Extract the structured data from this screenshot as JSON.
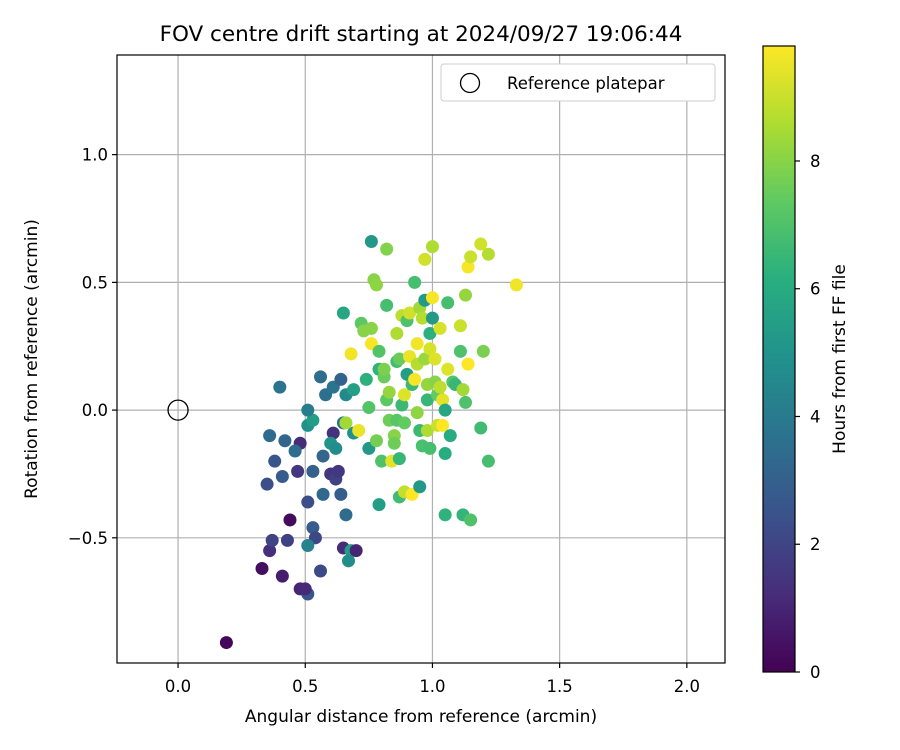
{
  "chart_data": {
    "type": "scatter",
    "title": "FOV centre drift starting at 2024/09/27 19:06:44",
    "xlabel": "Angular distance from reference (arcmin)",
    "ylabel": "Rotation from reference (arcmin)",
    "xlim": [
      -0.24,
      2.15
    ],
    "ylim": [
      -0.99,
      1.39
    ],
    "xticks": [
      0.0,
      0.5,
      1.0,
      1.5,
      2.0
    ],
    "xtick_labels": [
      "0.0",
      "0.5",
      "1.0",
      "1.5",
      "2.0"
    ],
    "yticks": [
      -0.5,
      0.0,
      0.5,
      1.0
    ],
    "ytick_labels": [
      "−0.5",
      "0.0",
      "0.5",
      "1.0"
    ],
    "grid": true,
    "legend": {
      "entries": [
        {
          "label": "Reference platepar",
          "marker": "open-circle"
        }
      ],
      "position": "upper-right"
    },
    "reference_point": {
      "x": 0.0,
      "y": 0.0
    },
    "colorbar": {
      "label": "Hours from first FF file",
      "colormap": "viridis",
      "range": [
        0,
        9.8
      ],
      "ticks": [
        0,
        2,
        4,
        6,
        8
      ],
      "tick_labels": [
        "0",
        "2",
        "4",
        "6",
        "8"
      ]
    },
    "colors": {
      "grid": "#b0b0b0",
      "axis": "#000000"
    },
    "points": [
      {
        "x": 0.19,
        "y": -0.91,
        "h": 0.2
      },
      {
        "x": 0.33,
        "y": -0.62,
        "h": 0.4
      },
      {
        "x": 0.36,
        "y": -0.55,
        "h": 1.3
      },
      {
        "x": 0.41,
        "y": -0.65,
        "h": 0.8
      },
      {
        "x": 0.44,
        "y": -0.43,
        "h": 0.3
      },
      {
        "x": 0.48,
        "y": -0.7,
        "h": 1.0
      },
      {
        "x": 0.48,
        "y": -0.13,
        "h": 1.2
      },
      {
        "x": 0.47,
        "y": -0.24,
        "h": 1.6
      },
      {
        "x": 0.43,
        "y": -0.51,
        "h": 1.9
      },
      {
        "x": 0.37,
        "y": -0.51,
        "h": 2.0
      },
      {
        "x": 0.35,
        "y": -0.29,
        "h": 2.4
      },
      {
        "x": 0.38,
        "y": -0.2,
        "h": 2.6
      },
      {
        "x": 0.41,
        "y": -0.26,
        "h": 2.8
      },
      {
        "x": 0.36,
        "y": -0.1,
        "h": 3.4
      },
      {
        "x": 0.42,
        "y": -0.12,
        "h": 3.2
      },
      {
        "x": 0.46,
        "y": -0.16,
        "h": 3.5
      },
      {
        "x": 0.4,
        "y": 0.09,
        "h": 3.7
      },
      {
        "x": 0.51,
        "y": -0.06,
        "h": 4.9
      },
      {
        "x": 0.53,
        "y": -0.04,
        "h": 5.4
      },
      {
        "x": 0.51,
        "y": 0.0,
        "h": 4.1
      },
      {
        "x": 0.57,
        "y": -0.18,
        "h": 3.2
      },
      {
        "x": 0.53,
        "y": -0.24,
        "h": 3.0
      },
      {
        "x": 0.51,
        "y": -0.36,
        "h": 2.3
      },
      {
        "x": 0.57,
        "y": -0.33,
        "h": 3.3
      },
      {
        "x": 0.53,
        "y": -0.46,
        "h": 2.8
      },
      {
        "x": 0.54,
        "y": -0.5,
        "h": 2.1
      },
      {
        "x": 0.51,
        "y": -0.53,
        "h": 4.3
      },
      {
        "x": 0.51,
        "y": -0.72,
        "h": 2.6
      },
      {
        "x": 0.5,
        "y": -0.7,
        "h": 1.1
      },
      {
        "x": 0.56,
        "y": -0.63,
        "h": 2.2
      },
      {
        "x": 0.6,
        "y": -0.25,
        "h": 1.5
      },
      {
        "x": 0.62,
        "y": -0.27,
        "h": 1.9
      },
      {
        "x": 0.63,
        "y": -0.24,
        "h": 1.6
      },
      {
        "x": 0.61,
        "y": -0.09,
        "h": 1.4
      },
      {
        "x": 0.6,
        "y": -0.13,
        "h": 5.0
      },
      {
        "x": 0.62,
        "y": -0.15,
        "h": 4.7
      },
      {
        "x": 0.64,
        "y": -0.33,
        "h": 2.9
      },
      {
        "x": 0.66,
        "y": -0.41,
        "h": 3.4
      },
      {
        "x": 0.65,
        "y": -0.54,
        "h": 1.2
      },
      {
        "x": 0.68,
        "y": -0.55,
        "h": 5.4
      },
      {
        "x": 0.7,
        "y": -0.55,
        "h": 1.0
      },
      {
        "x": 0.67,
        "y": -0.59,
        "h": 4.8
      },
      {
        "x": 0.56,
        "y": 0.13,
        "h": 3.5
      },
      {
        "x": 0.58,
        "y": 0.06,
        "h": 3.6
      },
      {
        "x": 0.61,
        "y": 0.09,
        "h": 3.7
      },
      {
        "x": 0.64,
        "y": 0.12,
        "h": 3.1
      },
      {
        "x": 0.65,
        "y": -0.05,
        "h": 3.8
      },
      {
        "x": 0.66,
        "y": 0.06,
        "h": 4.6
      },
      {
        "x": 0.69,
        "y": -0.09,
        "h": 4.9
      },
      {
        "x": 0.69,
        "y": 0.08,
        "h": 5.5
      },
      {
        "x": 0.65,
        "y": 0.38,
        "h": 5.8
      },
      {
        "x": 0.66,
        "y": -0.05,
        "h": 8.4
      },
      {
        "x": 0.68,
        "y": 0.22,
        "h": 9.6
      },
      {
        "x": 0.71,
        "y": -0.08,
        "h": 9.5
      },
      {
        "x": 0.72,
        "y": 0.34,
        "h": 7.3
      },
      {
        "x": 0.73,
        "y": 0.31,
        "h": 8.0
      },
      {
        "x": 0.74,
        "y": 0.12,
        "h": 6.2
      },
      {
        "x": 0.75,
        "y": 0.01,
        "h": 7.1
      },
      {
        "x": 0.75,
        "y": -0.15,
        "h": 5.2
      },
      {
        "x": 0.76,
        "y": 0.66,
        "h": 5.2
      },
      {
        "x": 0.76,
        "y": 0.32,
        "h": 8.0
      },
      {
        "x": 0.76,
        "y": 0.26,
        "h": 9.7
      },
      {
        "x": 0.77,
        "y": 0.51,
        "h": 8.0
      },
      {
        "x": 0.78,
        "y": 0.49,
        "h": 8.1
      },
      {
        "x": 0.78,
        "y": -0.12,
        "h": 7.7
      },
      {
        "x": 0.79,
        "y": -0.37,
        "h": 5.4
      },
      {
        "x": 0.79,
        "y": 0.16,
        "h": 6.3
      },
      {
        "x": 0.79,
        "y": 0.23,
        "h": 7.1
      },
      {
        "x": 0.8,
        "y": -0.2,
        "h": 7.0
      },
      {
        "x": 0.81,
        "y": 0.13,
        "h": 7.5
      },
      {
        "x": 0.81,
        "y": 0.16,
        "h": 7.8
      },
      {
        "x": 0.82,
        "y": 0.63,
        "h": 7.9
      },
      {
        "x": 0.82,
        "y": 0.41,
        "h": 6.8
      },
      {
        "x": 0.82,
        "y": 0.04,
        "h": 7.3
      },
      {
        "x": 0.83,
        "y": -0.04,
        "h": 7.6
      },
      {
        "x": 0.83,
        "y": 0.07,
        "h": 8.2
      },
      {
        "x": 0.84,
        "y": -0.2,
        "h": 9.4
      },
      {
        "x": 0.85,
        "y": -0.1,
        "h": 8.0
      },
      {
        "x": 0.85,
        "y": -0.13,
        "h": 7.6
      },
      {
        "x": 0.86,
        "y": 0.19,
        "h": 6.7
      },
      {
        "x": 0.86,
        "y": -0.04,
        "h": 7.2
      },
      {
        "x": 0.86,
        "y": 0.3,
        "h": 8.6
      },
      {
        "x": 0.87,
        "y": -0.19,
        "h": 6.5
      },
      {
        "x": 0.87,
        "y": -0.34,
        "h": 6.7
      },
      {
        "x": 0.87,
        "y": 0.2,
        "h": 7.5
      },
      {
        "x": 0.88,
        "y": 0.37,
        "h": 8.8
      },
      {
        "x": 0.88,
        "y": 0.02,
        "h": 6.6
      },
      {
        "x": 0.89,
        "y": -0.32,
        "h": 8.9
      },
      {
        "x": 0.89,
        "y": 0.06,
        "h": 9.3
      },
      {
        "x": 0.89,
        "y": -0.05,
        "h": 7.4
      },
      {
        "x": 0.9,
        "y": 0.35,
        "h": 7.0
      },
      {
        "x": 0.9,
        "y": 0.14,
        "h": 5.4
      },
      {
        "x": 0.91,
        "y": 0.21,
        "h": 9.5
      },
      {
        "x": 0.91,
        "y": 0.38,
        "h": 9.1
      },
      {
        "x": 0.92,
        "y": -0.33,
        "h": 9.8
      },
      {
        "x": 0.92,
        "y": 0.1,
        "h": 6.6
      },
      {
        "x": 0.93,
        "y": 0.5,
        "h": 6.8
      },
      {
        "x": 0.93,
        "y": 0.12,
        "h": 9.7
      },
      {
        "x": 0.94,
        "y": -0.01,
        "h": 8.1
      },
      {
        "x": 0.94,
        "y": 0.18,
        "h": 8.7
      },
      {
        "x": 0.94,
        "y": 0.26,
        "h": 9.6
      },
      {
        "x": 0.95,
        "y": -0.3,
        "h": 5.2
      },
      {
        "x": 0.95,
        "y": 0.4,
        "h": 8.4
      },
      {
        "x": 0.95,
        "y": -0.08,
        "h": 6.6
      },
      {
        "x": 0.96,
        "y": -0.14,
        "h": 6.9
      },
      {
        "x": 0.96,
        "y": 0.36,
        "h": 8.7
      },
      {
        "x": 0.97,
        "y": 0.59,
        "h": 9.1
      },
      {
        "x": 0.97,
        "y": 0.2,
        "h": 8.3
      },
      {
        "x": 0.97,
        "y": 0.43,
        "h": 5.3
      },
      {
        "x": 0.98,
        "y": 0.04,
        "h": 6.5
      },
      {
        "x": 0.98,
        "y": -0.08,
        "h": 8.6
      },
      {
        "x": 0.98,
        "y": 0.1,
        "h": 8.2
      },
      {
        "x": 0.99,
        "y": 0.3,
        "h": 6.2
      },
      {
        "x": 0.99,
        "y": 0.24,
        "h": 9.2
      },
      {
        "x": 0.99,
        "y": -0.15,
        "h": 6.8
      },
      {
        "x": 1.0,
        "y": 0.64,
        "h": 8.6
      },
      {
        "x": 1.0,
        "y": 0.36,
        "h": 5.3
      },
      {
        "x": 1.0,
        "y": 0.44,
        "h": 9.7
      },
      {
        "x": 1.01,
        "y": 0.11,
        "h": 8.0
      },
      {
        "x": 1.01,
        "y": 0.2,
        "h": 9.3
      },
      {
        "x": 1.02,
        "y": -0.06,
        "h": 9.0
      },
      {
        "x": 1.02,
        "y": 0.06,
        "h": 7.4
      },
      {
        "x": 1.03,
        "y": 0.09,
        "h": 8.8
      },
      {
        "x": 1.03,
        "y": 0.32,
        "h": 9.2
      },
      {
        "x": 1.04,
        "y": 0.04,
        "h": 9.4
      },
      {
        "x": 1.04,
        "y": -0.06,
        "h": 9.9
      },
      {
        "x": 1.05,
        "y": -0.17,
        "h": 6.1
      },
      {
        "x": 1.05,
        "y": 0.0,
        "h": 5.8
      },
      {
        "x": 1.05,
        "y": -0.41,
        "h": 6.3
      },
      {
        "x": 1.06,
        "y": 0.42,
        "h": 6.8
      },
      {
        "x": 1.06,
        "y": 0.16,
        "h": 9.3
      },
      {
        "x": 1.07,
        "y": -0.1,
        "h": 6.0
      },
      {
        "x": 1.08,
        "y": 0.11,
        "h": 7.1
      },
      {
        "x": 1.09,
        "y": 0.1,
        "h": 6.5
      },
      {
        "x": 1.11,
        "y": 0.33,
        "h": 9.0
      },
      {
        "x": 1.11,
        "y": 0.23,
        "h": 7.0
      },
      {
        "x": 1.12,
        "y": -0.41,
        "h": 6.4
      },
      {
        "x": 1.12,
        "y": 0.08,
        "h": 8.4
      },
      {
        "x": 1.13,
        "y": 0.45,
        "h": 8.2
      },
      {
        "x": 1.13,
        "y": 0.03,
        "h": 7.0
      },
      {
        "x": 1.14,
        "y": 0.56,
        "h": 9.7
      },
      {
        "x": 1.14,
        "y": 0.18,
        "h": 9.8
      },
      {
        "x": 1.15,
        "y": 0.6,
        "h": 9.0
      },
      {
        "x": 1.15,
        "y": -0.43,
        "h": 7.0
      },
      {
        "x": 1.19,
        "y": 0.65,
        "h": 9.1
      },
      {
        "x": 1.19,
        "y": -0.07,
        "h": 6.7
      },
      {
        "x": 1.2,
        "y": 0.23,
        "h": 7.8
      },
      {
        "x": 1.22,
        "y": 0.61,
        "h": 8.7
      },
      {
        "x": 1.22,
        "y": -0.2,
        "h": 6.8
      },
      {
        "x": 1.33,
        "y": 0.49,
        "h": 9.6
      }
    ]
  }
}
